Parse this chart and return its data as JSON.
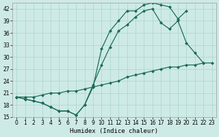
{
  "xlabel": "Humidex (Indice chaleur)",
  "bg_color": "#ceeae6",
  "grid_color": "#aad4cf",
  "line_color": "#1a6b5a",
  "xlim": [
    -0.5,
    23.5
  ],
  "ylim": [
    15,
    43.5
  ],
  "yticks": [
    15,
    18,
    21,
    24,
    27,
    30,
    33,
    36,
    39,
    42
  ],
  "xticks": [
    0,
    1,
    2,
    3,
    4,
    5,
    6,
    7,
    8,
    9,
    10,
    11,
    12,
    13,
    14,
    15,
    16,
    17,
    18,
    19,
    20,
    21,
    22,
    23
  ],
  "line1_x": [
    0,
    1,
    2,
    3,
    4,
    5,
    6,
    7,
    8,
    9,
    10,
    11,
    12,
    13,
    14,
    15,
    16,
    17,
    18,
    19,
    20
  ],
  "line1_y": [
    20.0,
    19.5,
    19.0,
    18.5,
    17.5,
    16.5,
    16.5,
    15.5,
    18.0,
    22.5,
    32.0,
    36.5,
    39.0,
    41.5,
    41.5,
    43.0,
    43.5,
    43.0,
    42.5,
    39.5,
    41.5
  ],
  "line2_x": [
    0,
    1,
    2,
    3,
    4,
    5,
    6,
    7,
    8,
    9,
    10,
    11,
    12,
    13,
    14,
    15,
    16,
    17,
    18,
    19,
    20,
    21,
    22,
    23
  ],
  "line2_y": [
    20.0,
    19.5,
    19.0,
    18.5,
    17.5,
    16.5,
    16.5,
    15.5,
    18.0,
    23.0,
    28.0,
    32.5,
    36.5,
    38.0,
    40.0,
    41.5,
    42.0,
    38.5,
    37.0,
    39.0,
    33.5,
    31.0,
    28.5,
    null
  ],
  "line3_x": [
    0,
    1,
    2,
    3,
    4,
    5,
    6,
    7,
    8,
    9,
    10,
    11,
    12,
    13,
    14,
    15,
    16,
    17,
    18,
    19,
    20,
    21,
    22,
    23
  ],
  "line3_y": [
    20.0,
    20.0,
    20.0,
    20.5,
    21.0,
    21.0,
    21.5,
    21.5,
    22.0,
    22.5,
    23.0,
    23.5,
    24.0,
    25.0,
    25.5,
    26.0,
    26.5,
    27.0,
    27.5,
    27.5,
    28.0,
    28.0,
    28.5,
    28.5
  ],
  "marker": "D",
  "markersize": 2.5,
  "linewidth": 0.9,
  "tick_fontsize": 5.5,
  "xlabel_fontsize": 6.5
}
